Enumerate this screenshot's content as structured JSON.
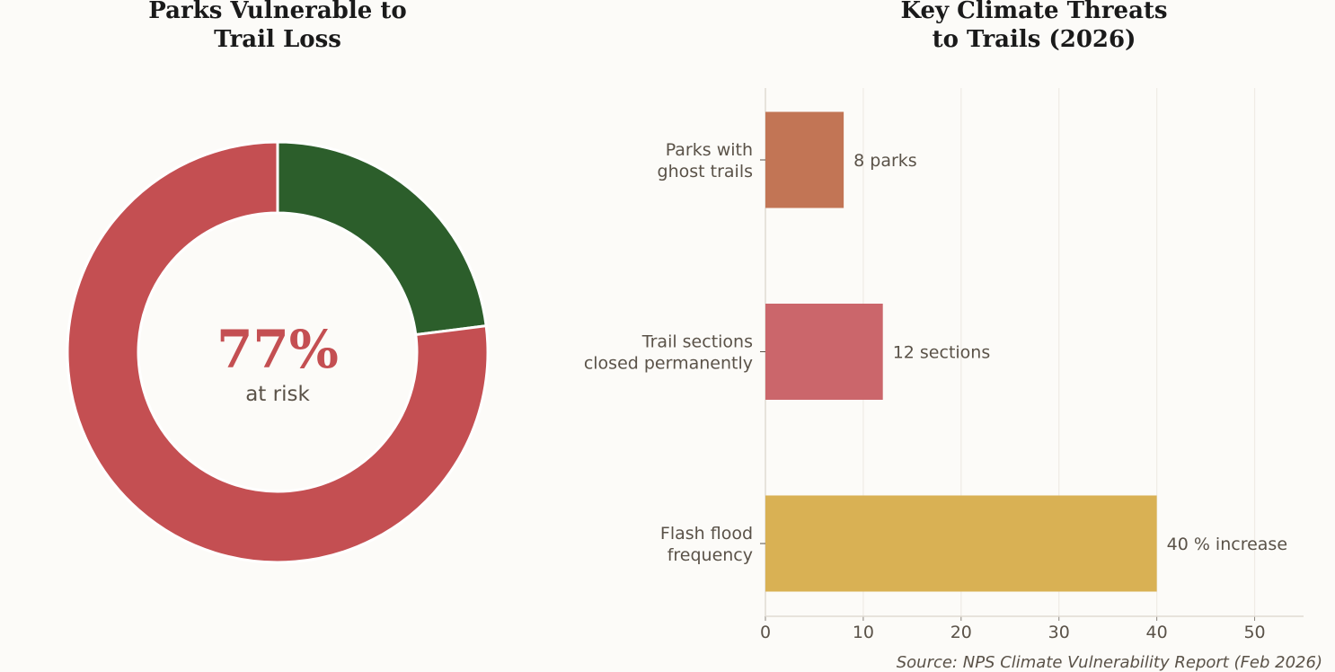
{
  "chart_data": [
    {
      "type": "pie",
      "title": "Parks Vulnerable to\nTrail Loss",
      "values": [
        77,
        23
      ],
      "colors": [
        "#c44f52",
        "#2c5e2b"
      ],
      "center_value": "77%",
      "center_label": "at risk"
    },
    {
      "type": "bar",
      "orientation": "horizontal",
      "title": "Key Climate Threats\nto Trails (2026)",
      "categories": [
        "Parks with\nghost trails",
        "Trail sections\nclosed permanently",
        "Flash flood\nfrequency"
      ],
      "values": [
        8,
        12,
        40
      ],
      "data_labels": [
        "8 parks",
        "12 sections",
        "40 % increase"
      ],
      "colors": [
        "#c27555",
        "#cb666b",
        "#d9b154"
      ],
      "xlim": [
        0,
        55
      ],
      "xticks": [
        0,
        10,
        20,
        30,
        40,
        50
      ],
      "grid": true
    }
  ],
  "source": "Source: NPS Climate Vulnerability Report (Feb 2026)"
}
